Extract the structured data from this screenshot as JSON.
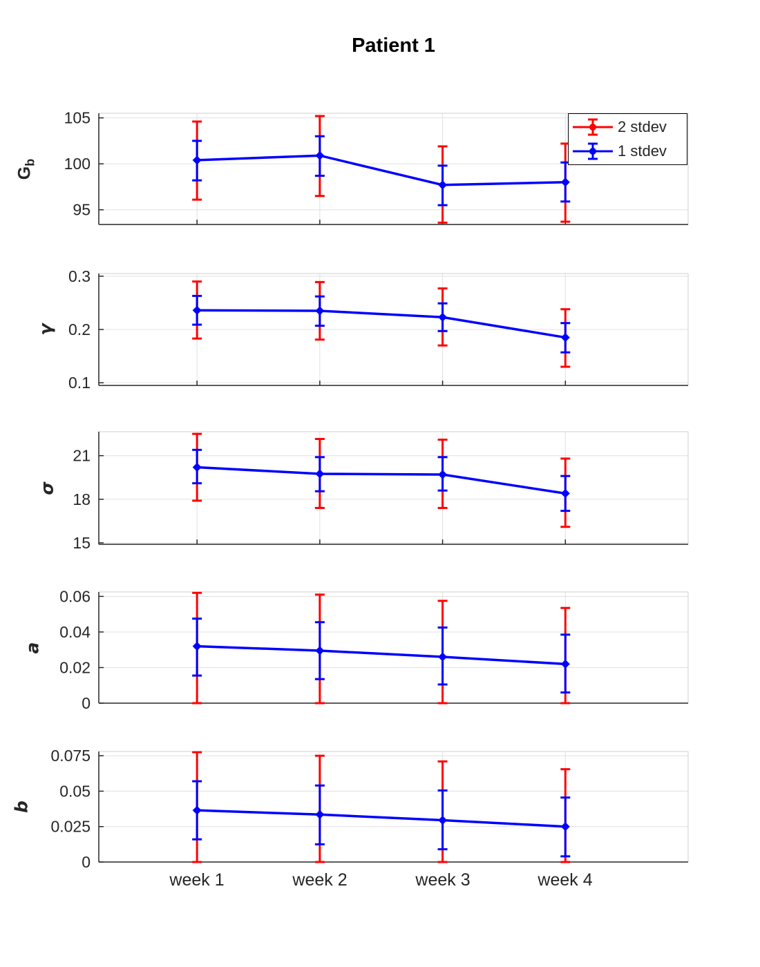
{
  "title": "Patient 1",
  "legend": {
    "entries": [
      {
        "label": "2 stdev",
        "color": "#ff0000"
      },
      {
        "label": "1 stdev",
        "color": "#0000ff"
      }
    ]
  },
  "x_axis": {
    "categories": [
      "week 1",
      "week 2",
      "week 3",
      "week 4"
    ]
  },
  "chart_data": {
    "type": "line",
    "title": "Patient 1",
    "x_categories": [
      "week 1",
      "week 2",
      "week 3",
      "week 4"
    ],
    "x_values": [
      1,
      2,
      3,
      4
    ],
    "xlim": [
      0.2,
      5.0
    ],
    "grid": true,
    "legend_position": "top-right-first-subplot",
    "legend_entries": [
      "2 stdev",
      "1 stdev"
    ],
    "colors": {
      "two_stdev": "#ff0000",
      "one_stdev": "#0000ff",
      "mean_line": "#0000ff"
    },
    "subplots": [
      {
        "id": "Gb",
        "ylabel": "G_b",
        "ylabel_main": "G",
        "ylabel_sub": "b",
        "ylim": [
          93.4,
          105.5
        ],
        "yticks": [
          95,
          100,
          105
        ],
        "ytick_labels": [
          "95",
          "100",
          "105"
        ],
        "means": [
          100.4,
          100.9,
          97.7,
          98.0
        ],
        "one_stdev": [
          [
            98.2,
            102.5
          ],
          [
            98.7,
            103.0
          ],
          [
            95.5,
            99.8
          ],
          [
            95.9,
            100.15
          ]
        ],
        "two_stdev": [
          [
            96.1,
            104.6
          ],
          [
            96.5,
            105.2
          ],
          [
            93.6,
            101.9
          ],
          [
            93.7,
            102.2
          ]
        ]
      },
      {
        "id": "gamma",
        "ylabel": "γ",
        "ylim": [
          0.095,
          0.305
        ],
        "yticks": [
          0.1,
          0.2,
          0.3
        ],
        "ytick_labels": [
          "0.1",
          "0.2",
          "0.3"
        ],
        "means": [
          0.236,
          0.235,
          0.223,
          0.185
        ],
        "one_stdev": [
          [
            0.209,
            0.263
          ],
          [
            0.207,
            0.262
          ],
          [
            0.197,
            0.249
          ],
          [
            0.157,
            0.212
          ]
        ],
        "two_stdev": [
          [
            0.183,
            0.29
          ],
          [
            0.181,
            0.289
          ],
          [
            0.17,
            0.277
          ],
          [
            0.13,
            0.238
          ]
        ]
      },
      {
        "id": "sigma",
        "ylabel": "σ",
        "ylim": [
          14.9,
          22.65
        ],
        "yticks": [
          15,
          18,
          21
        ],
        "ytick_labels": [
          "15",
          "18",
          "21"
        ],
        "means": [
          20.2,
          19.75,
          19.7,
          18.4
        ],
        "one_stdev": [
          [
            19.1,
            21.4
          ],
          [
            18.55,
            20.9
          ],
          [
            18.6,
            20.9
          ],
          [
            17.2,
            19.6
          ]
        ],
        "two_stdev": [
          [
            17.9,
            22.5
          ],
          [
            17.4,
            22.15
          ],
          [
            17.4,
            22.1
          ],
          [
            16.1,
            20.8
          ]
        ]
      },
      {
        "id": "a",
        "ylabel": "a",
        "ylim": [
          0,
          0.0625
        ],
        "yticks": [
          0,
          0.02,
          0.04,
          0.06
        ],
        "ytick_labels": [
          "0",
          "0.02",
          "0.04",
          "0.06"
        ],
        "means": [
          0.032,
          0.0295,
          0.026,
          0.022
        ],
        "one_stdev": [
          [
            0.0155,
            0.0475
          ],
          [
            0.0135,
            0.0455
          ],
          [
            0.0105,
            0.0425
          ],
          [
            0.006,
            0.0385
          ]
        ],
        "two_stdev": [
          [
            0.0,
            0.062
          ],
          [
            0.0,
            0.061
          ],
          [
            0.0,
            0.0575
          ],
          [
            0.0,
            0.0535
          ]
        ]
      },
      {
        "id": "b",
        "ylabel": "b",
        "ylim": [
          0,
          0.078
        ],
        "yticks": [
          0,
          0.025,
          0.05,
          0.075
        ],
        "ytick_labels": [
          "0",
          "0.025",
          "0.05",
          "0.075"
        ],
        "means": [
          0.0365,
          0.0335,
          0.0295,
          0.025
        ],
        "one_stdev": [
          [
            0.016,
            0.057
          ],
          [
            0.0125,
            0.054
          ],
          [
            0.009,
            0.0505
          ],
          [
            0.004,
            0.0455
          ]
        ],
        "two_stdev": [
          [
            0.0,
            0.0775
          ],
          [
            0.0,
            0.075
          ],
          [
            0.0,
            0.071
          ],
          [
            0.0,
            0.0655
          ]
        ]
      }
    ]
  }
}
